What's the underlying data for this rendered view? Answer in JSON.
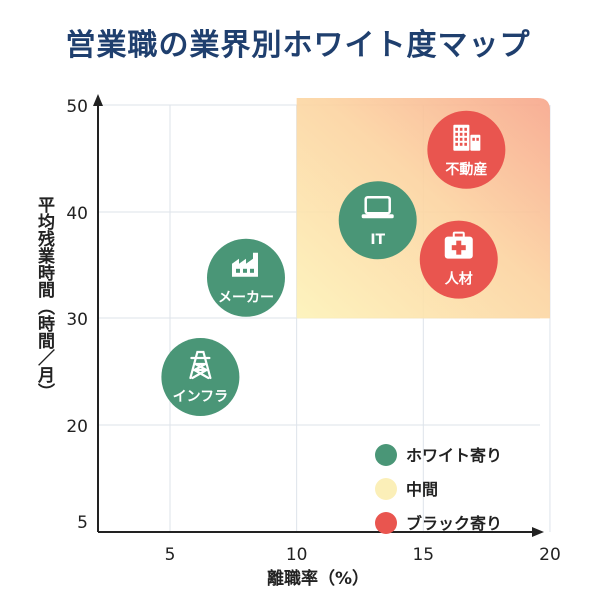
{
  "chart_data": {
    "type": "scatter",
    "title": "営業職の業界別ホワイト度マップ",
    "xlabel": "離職率（%）",
    "ylabel": "平均残業時間（時間／月）",
    "x_ticks": [
      5,
      10,
      15,
      20
    ],
    "y_ticks": [
      5,
      20,
      30,
      40,
      50
    ],
    "points": [
      {
        "label": "不動産",
        "icon": "building-icon",
        "x": 16.7,
        "y": 45.8,
        "category": "black"
      },
      {
        "label": "IT",
        "icon": "laptop-icon",
        "x": 13.2,
        "y": 39.2,
        "category": "white"
      },
      {
        "label": "人材",
        "icon": "first-aid-kit-icon",
        "x": 16.4,
        "y": 35.5,
        "category": "black"
      },
      {
        "label": "メーカー",
        "icon": "factory-icon",
        "x": 8.0,
        "y": 33.8,
        "category": "white"
      },
      {
        "label": "インフラ",
        "icon": "power-tower-icon",
        "x": 6.2,
        "y": 24.5,
        "category": "white"
      }
    ],
    "highlight_region": {
      "x": [
        10,
        20
      ],
      "y": [
        30,
        50
      ]
    },
    "grid": true,
    "legend_position": "bottom-right",
    "legend": [
      {
        "label": "ホワイト寄り",
        "color": "#4a9677"
      },
      {
        "label": "中間",
        "color": "#fbefb8"
      },
      {
        "label": "ブラック寄り",
        "color": "#e9554f"
      }
    ],
    "colors": {
      "white": "#4a9677",
      "black": "#e9554f",
      "axis": "#222222",
      "grid": "#dde3ea"
    }
  }
}
